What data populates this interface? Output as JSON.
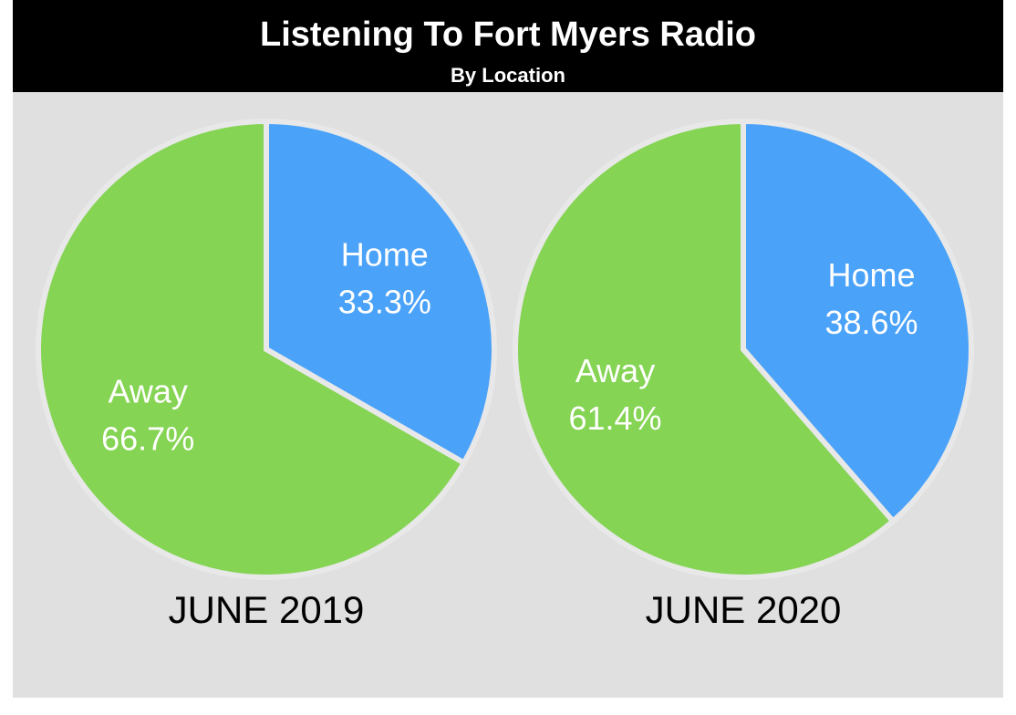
{
  "title": "Listening To Fort Myers Radio",
  "subtitle": "By Location",
  "chart_data": [
    {
      "type": "pie",
      "title": "JUNE 2019",
      "categories": [
        "Home",
        "Away"
      ],
      "values": [
        33.3,
        66.7
      ],
      "value_labels": [
        "33.3%",
        "66.7%"
      ],
      "colors": [
        "#4aa2f9",
        "#85d454"
      ]
    },
    {
      "type": "pie",
      "title": "JUNE 2020",
      "categories": [
        "Home",
        "Away"
      ],
      "values": [
        38.6,
        61.4
      ],
      "value_labels": [
        "38.6%",
        "61.4%"
      ],
      "colors": [
        "#4aa2f9",
        "#85d454"
      ]
    }
  ]
}
